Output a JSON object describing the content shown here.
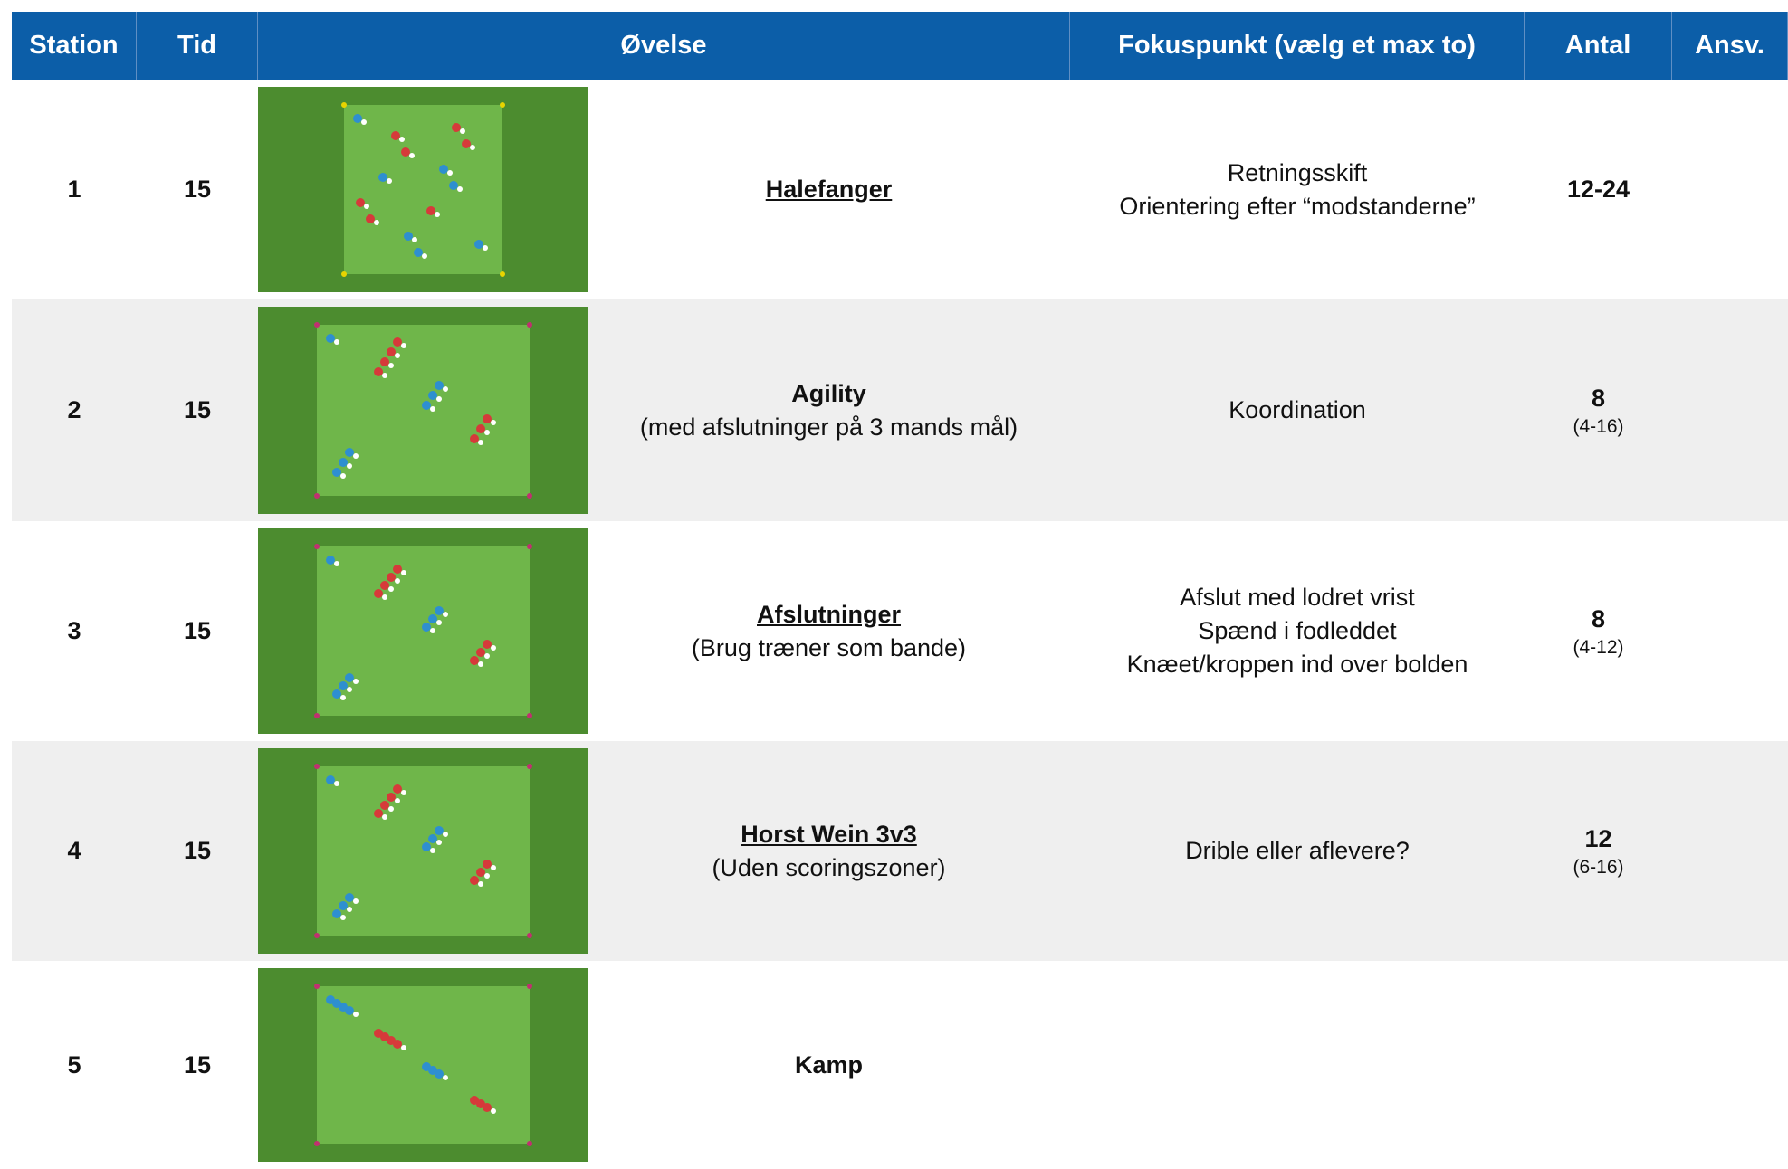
{
  "header": {
    "columns": [
      "Station",
      "Tid",
      "Øvelse",
      "Fokuspunkt (vælg et max to)",
      "Antal",
      "Ansv."
    ]
  },
  "rows": [
    {
      "station": "1",
      "tid": "15",
      "exercise": {
        "title": "Halefanger",
        "underline": true
      },
      "focus": [
        "Retningsskift",
        "Orientering efter “modstanderne”"
      ],
      "antal": "12-24"
    },
    {
      "station": "2",
      "tid": "15",
      "exercise": {
        "title": "Agility",
        "underline": false,
        "subtitle": "(med afslutninger på 3 mands mål)"
      },
      "focus": [
        "Koordination"
      ],
      "antal": "8",
      "antal_range": "(4-16)"
    },
    {
      "station": "3",
      "tid": "15",
      "exercise": {
        "title": "Afslutninger",
        "underline": true,
        "subtitle": "(Brug træner som bande)"
      },
      "focus": [
        "Afslut med lodret vrist",
        "Spænd i fodleddet",
        "Knæet/kroppen ind over bolden"
      ],
      "antal": "8",
      "antal_range": "(4-12)"
    },
    {
      "station": "4",
      "tid": "15",
      "exercise": {
        "title": "Horst Wein 3v3",
        "underline": true,
        "subtitle": "(Uden scoringszoner)"
      },
      "focus": [
        "Drible eller aflevere?"
      ],
      "antal": "12",
      "antal_range": "(6-16)"
    },
    {
      "station": "5",
      "tid": "15",
      "exercise": {
        "title": "Kamp",
        "underline": false
      }
    }
  ]
}
